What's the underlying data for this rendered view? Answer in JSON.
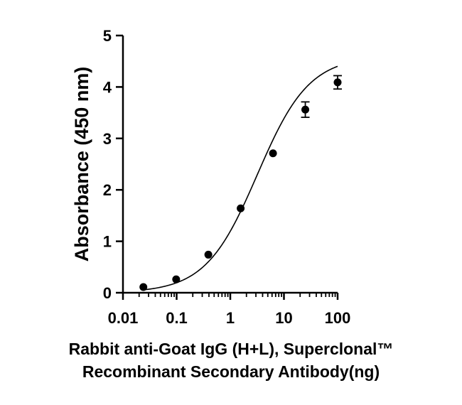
{
  "chart_data": {
    "type": "scatter",
    "title": "",
    "xlabel_lines": [
      "Rabbit anti-Goat IgG (H+L), Superclonal™",
      "Recombinant Secondary Antibody(ng)"
    ],
    "ylabel": "Absorbance (450 nm)",
    "xscale": "log",
    "xlim": [
      0.01,
      100
    ],
    "ylim": [
      0,
      5
    ],
    "x_ticks": [
      {
        "value": 0.01,
        "label": "0.01"
      },
      {
        "value": 0.1,
        "label": "0.1"
      },
      {
        "value": 1,
        "label": "1"
      },
      {
        "value": 10,
        "label": "10"
      },
      {
        "value": 100,
        "label": "100"
      }
    ],
    "y_ticks": [
      {
        "value": 0,
        "label": "0"
      },
      {
        "value": 1,
        "label": "1"
      },
      {
        "value": 2,
        "label": "2"
      },
      {
        "value": 3,
        "label": "3"
      },
      {
        "value": 4,
        "label": "4"
      },
      {
        "value": 5,
        "label": "5"
      }
    ],
    "grid": false,
    "series": [
      {
        "points": [
          {
            "x": 0.024,
            "y": 0.11,
            "err": 0.0
          },
          {
            "x": 0.098,
            "y": 0.26,
            "err": 0.0
          },
          {
            "x": 0.39,
            "y": 0.74,
            "err": 0.0
          },
          {
            "x": 1.56,
            "y": 1.64,
            "err": 0.0
          },
          {
            "x": 6.25,
            "y": 2.71,
            "err": 0.0
          },
          {
            "x": 25,
            "y": 3.56,
            "err": 0.15
          },
          {
            "x": 100,
            "y": 4.09,
            "err": 0.13
          }
        ],
        "fit": {
          "model": "4PL",
          "bottom": 0.0,
          "top": 4.6,
          "ec50": 3.2,
          "hill": 0.9
        }
      }
    ]
  }
}
